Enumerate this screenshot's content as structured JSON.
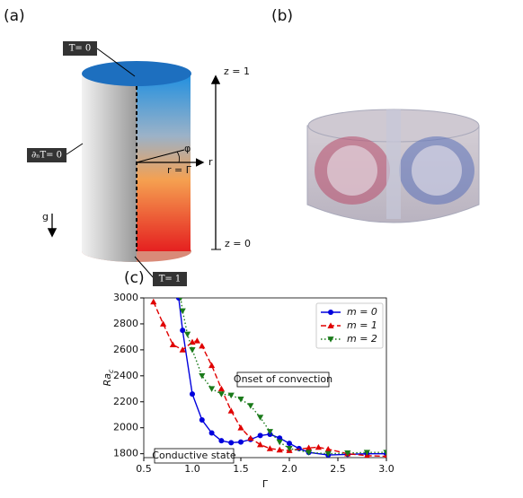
{
  "panel_a": {
    "label": "(a)",
    "top_bc": "T= 0",
    "side_bc": "∂ₙT= 0",
    "bottom_bc": "T= 1",
    "gravity": "g",
    "r_axis": "r",
    "radius": "r = Γ",
    "angle": "φ",
    "z_top": "z = 1",
    "z_bottom": "z = 0"
  },
  "panel_b": {
    "label": "(b)"
  },
  "panel_c": {
    "label": "(c)"
  },
  "chart_data": {
    "type": "line",
    "xlabel": "Γ",
    "ylabel": "Ra",
    "ylabel_sub": "c",
    "xlim": [
      0.5,
      3.0
    ],
    "ylim": [
      1770,
      3000
    ],
    "xticks": [
      0.5,
      {
        "value": 1,
        "label": "1.0"
      },
      1.5,
      {
        "value": 2,
        "label": "2.0"
      },
      2.5,
      {
        "value": 3,
        "label": "3.0"
      }
    ],
    "yticks": [
      1800,
      2000,
      2200,
      2400,
      2600,
      2800,
      3000
    ],
    "legend": "upper right",
    "annotations": [
      "Onset of convection",
      "Conductive state"
    ],
    "series": [
      {
        "name": "m = 0",
        "color": "#0000dd",
        "marker": "circle",
        "dash": "solid",
        "x": [
          0.86,
          0.9,
          1.0,
          1.1,
          1.2,
          1.3,
          1.4,
          1.5,
          1.6,
          1.7,
          1.8,
          1.9,
          2.0,
          2.1,
          2.2,
          2.4,
          2.6,
          2.8,
          3.0
        ],
        "values": [
          3000,
          2750,
          2260,
          2060,
          1960,
          1900,
          1885,
          1890,
          1910,
          1940,
          1950,
          1920,
          1880,
          1840,
          1810,
          1790,
          1795,
          1800,
          1800
        ]
      },
      {
        "name": "m = 1",
        "color": "#e00000",
        "marker": "triangle-up",
        "dash": "dashed",
        "x": [
          0.6,
          0.7,
          0.8,
          0.9,
          1.0,
          1.05,
          1.1,
          1.2,
          1.3,
          1.4,
          1.5,
          1.6,
          1.7,
          1.8,
          1.9,
          2.0,
          2.2,
          2.3,
          2.4,
          2.6,
          2.8,
          3.0
        ],
        "values": [
          2970,
          2800,
          2640,
          2600,
          2660,
          2670,
          2630,
          2480,
          2300,
          2130,
          2000,
          1920,
          1870,
          1840,
          1830,
          1825,
          1845,
          1850,
          1835,
          1800,
          1785,
          1780
        ]
      },
      {
        "name": "m = 2",
        "color": "#1a7a1a",
        "marker": "triangle-down",
        "dash": "dotted",
        "x": [
          0.88,
          0.9,
          0.95,
          1.0,
          1.1,
          1.2,
          1.3,
          1.4,
          1.5,
          1.6,
          1.7,
          1.8,
          1.9,
          2.0,
          2.2,
          2.4,
          2.6,
          2.8,
          3.0
        ],
        "values": [
          3000,
          2900,
          2720,
          2600,
          2400,
          2300,
          2260,
          2250,
          2220,
          2170,
          2080,
          1970,
          1890,
          1840,
          1810,
          1800,
          1805,
          1810,
          1810
        ]
      }
    ]
  }
}
